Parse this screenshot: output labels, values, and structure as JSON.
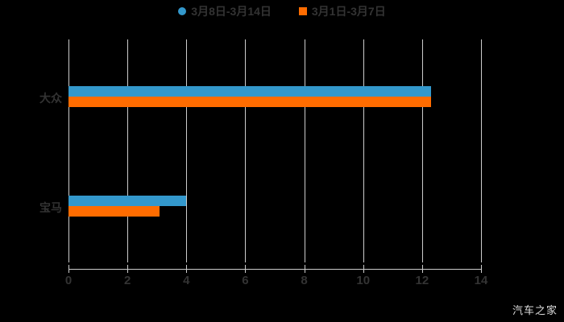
{
  "chart_data": {
    "type": "bar",
    "orientation": "horizontal",
    "title": "",
    "categories": [
      "大众",
      "宝马"
    ],
    "series": [
      {
        "name": "3月8日-3月14日",
        "color": "#3398cc",
        "marker": "circle",
        "values": [
          12.3,
          4.0
        ]
      },
      {
        "name": "3月1日-3月7日",
        "color": "#ff6c00",
        "marker": "square",
        "values": [
          12.3,
          3.1
        ]
      }
    ],
    "xlim": [
      0,
      14
    ],
    "xticks": [
      "0",
      "2",
      "4",
      "6",
      "8",
      "10",
      "12",
      "14"
    ],
    "grid": true,
    "legend_position": "top-center"
  },
  "watermark": "汽车之家",
  "colors": {
    "background": "#000000",
    "series_blue": "#3398cc",
    "series_orange": "#ff6c00",
    "axis": "#cccccc",
    "label_text": "#333333",
    "watermark_text": "#dddddd"
  }
}
